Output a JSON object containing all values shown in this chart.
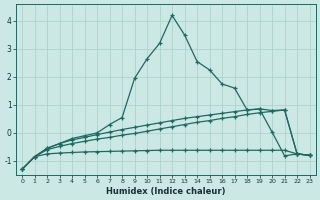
{
  "xlabel": "Humidex (Indice chaleur)",
  "bg_color": "#cce8e4",
  "grid_color": "#aacfca",
  "line_color": "#1a6b60",
  "xlim": [
    -0.5,
    23.5
  ],
  "ylim": [
    -1.5,
    4.6
  ],
  "xticks": [
    0,
    1,
    2,
    3,
    4,
    5,
    6,
    7,
    8,
    9,
    10,
    11,
    12,
    13,
    14,
    15,
    16,
    17,
    18,
    19,
    20,
    21,
    22,
    23
  ],
  "yticks": [
    -1,
    0,
    1,
    2,
    3,
    4
  ],
  "line_flat_x": [
    0,
    1,
    2,
    3,
    4,
    5,
    6,
    7,
    8,
    9,
    10,
    11,
    12,
    13,
    14,
    15,
    16,
    17,
    18,
    19,
    20,
    21,
    22,
    23
  ],
  "line_flat_y": [
    -1.3,
    -0.85,
    -0.75,
    -0.72,
    -0.7,
    -0.68,
    -0.67,
    -0.66,
    -0.65,
    -0.64,
    -0.63,
    -0.62,
    -0.62,
    -0.62,
    -0.62,
    -0.62,
    -0.62,
    -0.62,
    -0.62,
    -0.62,
    -0.62,
    -0.62,
    -0.75,
    -0.8
  ],
  "line_rise1_x": [
    0,
    1,
    2,
    3,
    4,
    5,
    6,
    7,
    8,
    9,
    10,
    11,
    12,
    13,
    14,
    15,
    16,
    17,
    18,
    19,
    20,
    21,
    22,
    23
  ],
  "line_rise1_y": [
    -1.3,
    -0.85,
    -0.6,
    -0.48,
    -0.38,
    -0.3,
    -0.22,
    -0.16,
    -0.08,
    -0.02,
    0.06,
    0.14,
    0.22,
    0.3,
    0.38,
    0.44,
    0.52,
    0.58,
    0.66,
    0.72,
    0.77,
    0.82,
    -0.75,
    -0.8
  ],
  "line_rise2_x": [
    0,
    1,
    2,
    3,
    4,
    5,
    6,
    7,
    8,
    9,
    10,
    11,
    12,
    13,
    14,
    15,
    16,
    17,
    18,
    19,
    20,
    21,
    22,
    23
  ],
  "line_rise2_y": [
    -1.3,
    -0.85,
    -0.55,
    -0.38,
    -0.25,
    -0.16,
    -0.06,
    0.03,
    0.12,
    0.2,
    0.28,
    0.36,
    0.44,
    0.52,
    0.58,
    0.64,
    0.7,
    0.76,
    0.82,
    0.86,
    0.8,
    0.82,
    -0.75,
    -0.8
  ],
  "line_peak_x": [
    0,
    1,
    2,
    3,
    4,
    5,
    6,
    7,
    8,
    9,
    10,
    11,
    12,
    13,
    14,
    15,
    16,
    17,
    18,
    19,
    20,
    21,
    22,
    23
  ],
  "line_peak_y": [
    -1.3,
    -0.85,
    -0.55,
    -0.38,
    -0.2,
    -0.1,
    0.0,
    0.3,
    0.55,
    1.95,
    2.65,
    3.2,
    4.2,
    3.5,
    2.55,
    2.25,
    1.75,
    1.6,
    0.82,
    0.85,
    0.03,
    -0.82,
    -0.75,
    -0.8
  ]
}
